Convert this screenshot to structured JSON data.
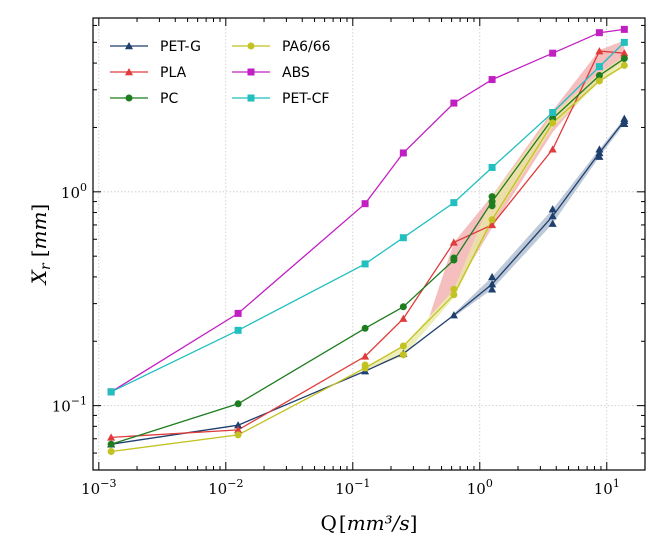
{
  "chart_data": {
    "type": "line",
    "xscale": "log",
    "yscale": "log",
    "xlim": [
      0.0009,
      20
    ],
    "ylim": [
      0.05,
      6.5
    ],
    "xlabel": {
      "prefix": "Q",
      "math": "mm³/s"
    },
    "ylabel": {
      "main": "X",
      "sub": "r",
      "math": "mm"
    },
    "x_tick_labels": [
      {
        "value": 0.001,
        "base": "10",
        "exp": "−3"
      },
      {
        "value": 0.01,
        "base": "10",
        "exp": "−2"
      },
      {
        "value": 0.1,
        "base": "10",
        "exp": "−1"
      },
      {
        "value": 1,
        "base": "10",
        "exp": "0"
      },
      {
        "value": 10,
        "base": "10",
        "exp": "1"
      }
    ],
    "y_tick_labels": [
      {
        "value": 0.1,
        "base": "10",
        "exp": "−1"
      },
      {
        "value": 1,
        "base": "10",
        "exp": "0"
      }
    ],
    "grid": true,
    "legend_position": "top-left",
    "series": [
      {
        "name": "PET-G",
        "color": "#1f3f6e",
        "marker": "triangle",
        "x": [
          0.00125,
          0.0125,
          0.125,
          0.25,
          0.625,
          1.25,
          3.75,
          8.75,
          13.75
        ],
        "y": [
          0.066,
          0.081,
          0.145,
          0.175,
          0.265,
          0.37,
          0.77,
          1.52,
          2.15
        ],
        "band_low": [
          0.26,
          0.35,
          0.71,
          1.46,
          2.08
        ],
        "band_high": [
          0.27,
          0.4,
          0.83,
          1.58,
          2.2
        ],
        "band_x": [
          0.625,
          1.25,
          3.75,
          8.75,
          13.75
        ],
        "band_color": "#a9b8cc",
        "markers_low": [
          0.35,
          0.71,
          1.46,
          2.08
        ],
        "markers_high": [
          0.4,
          0.83,
          1.58,
          2.2
        ]
      },
      {
        "name": "PLA",
        "color": "#e03c3c",
        "marker": "triangle",
        "x": [
          0.00125,
          0.0125,
          0.125,
          0.25,
          0.625,
          1.25,
          3.75,
          8.75,
          13.75
        ],
        "y": [
          0.071,
          0.077,
          0.17,
          0.255,
          0.58,
          0.7,
          1.58,
          4.55,
          4.45
        ],
        "band_x": [
          0.4,
          0.625,
          1.25,
          3.75,
          8.75,
          13.75
        ],
        "band_low": [
          0.26,
          0.34,
          0.68,
          1.9,
          3.4,
          4.1
        ],
        "band_high": [
          0.26,
          0.58,
          0.96,
          2.4,
          4.6,
          5.1
        ],
        "band_color": "#f2a9a9"
      },
      {
        "name": "PC",
        "color": "#1e7d1e",
        "marker": "circle",
        "x": [
          0.00125,
          0.0125,
          0.125,
          0.25,
          0.625,
          1.25,
          3.75,
          8.75,
          13.75
        ],
        "y": [
          0.066,
          0.102,
          0.23,
          0.29,
          0.48,
          0.9,
          2.2,
          3.5,
          4.2
        ],
        "extra_points": [
          [
            0.625,
            0.49
          ],
          [
            1.25,
            0.95
          ],
          [
            1.25,
            0.86
          ]
        ]
      },
      {
        "name": "PA6/66",
        "color": "#c2c222",
        "marker": "circle",
        "x": [
          0.00125,
          0.0125,
          0.125,
          0.25,
          0.625,
          1.25,
          3.75,
          8.75,
          13.75
        ],
        "y": [
          0.061,
          0.073,
          0.15,
          0.19,
          0.33,
          0.74,
          2.1,
          3.3,
          3.9
        ],
        "extra_points": [
          [
            0.125,
            0.155
          ],
          [
            0.25,
            0.173
          ],
          [
            0.625,
            0.35
          ]
        ],
        "band_x": [
          0.125,
          0.25,
          0.625,
          1.25,
          3.75,
          8.75,
          13.75
        ],
        "band_low": [
          0.148,
          0.17,
          0.32,
          0.72,
          2.0,
          3.25,
          3.85
        ],
        "band_high": [
          0.152,
          0.19,
          0.35,
          0.95,
          2.3,
          3.6,
          4.3
        ],
        "band_color": "#e8e8a0"
      },
      {
        "name": "ABS",
        "color": "#c21fc2",
        "marker": "square",
        "x": [
          0.00125,
          0.0125,
          0.125,
          0.25,
          0.625,
          1.25,
          3.75,
          8.75,
          13.75
        ],
        "y": [
          0.116,
          0.27,
          0.88,
          1.52,
          2.6,
          3.35,
          4.45,
          5.55,
          5.75
        ]
      },
      {
        "name": "PET-CF",
        "color": "#22bfbf",
        "marker": "square",
        "x": [
          0.00125,
          0.0125,
          0.125,
          0.25,
          0.625,
          1.25,
          3.75,
          8.75,
          13.75
        ],
        "y": [
          0.116,
          0.225,
          0.46,
          0.61,
          0.89,
          1.3,
          2.35,
          3.85,
          5.0
        ]
      }
    ]
  }
}
